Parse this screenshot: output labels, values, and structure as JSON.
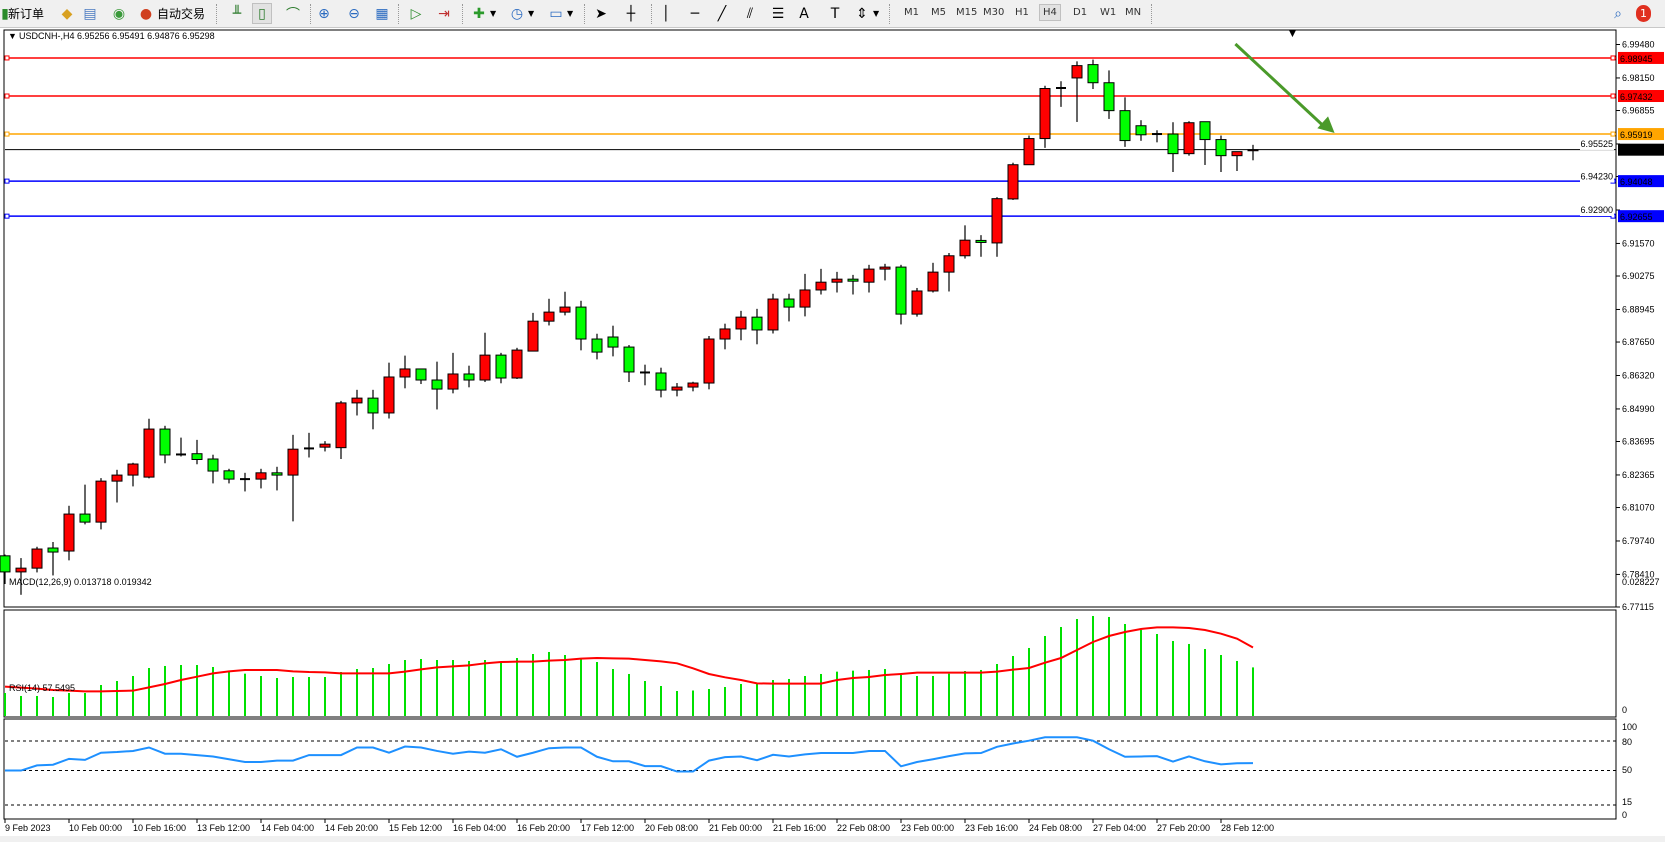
{
  "toolbar": {
    "new_order": "新订单",
    "auto_trading": "自动交易",
    "timeframes": [
      "M1",
      "M5",
      "M15",
      "M30",
      "H1",
      "H4",
      "D1",
      "W1",
      "MN"
    ],
    "active_timeframe": "H4",
    "notification_count": "1"
  },
  "chart": {
    "header": "USDCNH-,H4  6.95256 6.95491 6.94876 6.95298",
    "bull_color": "#ff0000",
    "bear_color": "#00ff00"
  },
  "macd": {
    "header": "MACD(12,26,9) 0.013718 0.019342",
    "max_label": "0.028227",
    "zero_label": "0"
  },
  "rsi": {
    "header": "RSI(14) 57.5495",
    "levels": [
      "100",
      "80",
      "50",
      "15",
      "0"
    ]
  },
  "chart_data": {
    "type": "candlestick",
    "symbol": "USDCNH-",
    "timeframe": "H4",
    "ylim": [
      6.77115,
      6.9948
    ],
    "y_ticks": [
      "6.99480",
      "6.98150",
      "6.96855",
      "6.95525",
      "6.94230",
      "6.92900",
      "6.91570",
      "6.90275",
      "6.88945",
      "6.87650",
      "6.86320",
      "6.84990",
      "6.83695",
      "6.82365",
      "6.81070",
      "6.79740",
      "6.78410",
      "6.77115"
    ],
    "x_labels": [
      {
        "index": 0,
        "label": "9 Feb 2023"
      },
      {
        "index": 4,
        "label": "10 Feb 00:00"
      },
      {
        "index": 8,
        "label": "10 Feb 16:00"
      },
      {
        "index": 12,
        "label": "13 Feb 12:00"
      },
      {
        "index": 16,
        "label": "14 Feb 04:00"
      },
      {
        "index": 20,
        "label": "14 Feb 20:00"
      },
      {
        "index": 24,
        "label": "15 Feb 12:00"
      },
      {
        "index": 28,
        "label": "16 Feb 04:00"
      },
      {
        "index": 32,
        "label": "16 Feb 20:00"
      },
      {
        "index": 36,
        "label": "17 Feb 12:00"
      },
      {
        "index": 40,
        "label": "20 Feb 08:00"
      },
      {
        "index": 44,
        "label": "21 Feb 00:00"
      },
      {
        "index": 48,
        "label": "21 Feb 16:00"
      },
      {
        "index": 52,
        "label": "22 Feb 08:00"
      },
      {
        "index": 56,
        "label": "23 Feb 00:00"
      },
      {
        "index": 60,
        "label": "23 Feb 16:00"
      },
      {
        "index": 64,
        "label": "24 Feb 08:00"
      },
      {
        "index": 68,
        "label": "27 Feb 04:00"
      },
      {
        "index": 72,
        "label": "27 Feb 20:00"
      },
      {
        "index": 76,
        "label": "28 Feb 12:00"
      }
    ],
    "ohlc": [
      [
        6.7915,
        6.792,
        6.7803,
        6.7851
      ],
      [
        6.7851,
        6.7906,
        6.776,
        6.7866
      ],
      [
        6.7866,
        6.7951,
        6.7849,
        6.7942
      ],
      [
        6.7946,
        6.797,
        6.7837,
        6.793
      ],
      [
        6.7934,
        6.8114,
        6.7897,
        6.8081
      ],
      [
        6.8081,
        6.8198,
        6.804,
        6.8049
      ],
      [
        6.8049,
        6.8224,
        6.802,
        6.8212
      ],
      [
        6.8212,
        6.8257,
        6.8127,
        6.8236
      ],
      [
        6.8236,
        6.8285,
        6.8191,
        6.828
      ],
      [
        6.8228,
        6.846,
        6.8223,
        6.8419
      ],
      [
        6.8419,
        6.8432,
        6.8283,
        6.8316
      ],
      [
        6.8318,
        6.8385,
        6.831,
        6.8318
      ],
      [
        6.8321,
        6.8376,
        6.8279,
        6.8298
      ],
      [
        6.83,
        6.8317,
        6.8203,
        6.8252
      ],
      [
        6.8253,
        6.8261,
        6.8203,
        6.822
      ],
      [
        6.822,
        6.8245,
        6.8171,
        6.822
      ],
      [
        6.822,
        6.8261,
        6.8183,
        6.8245
      ],
      [
        6.8245,
        6.8269,
        6.8175,
        6.8236
      ],
      [
        6.8236,
        6.8396,
        6.8052,
        6.8339
      ],
      [
        6.8342,
        6.8404,
        6.8306,
        6.8342
      ],
      [
        6.8347,
        6.8371,
        6.833,
        6.8359
      ],
      [
        6.8345,
        6.8531,
        6.83,
        6.8523
      ],
      [
        6.8523,
        6.8575,
        6.8473,
        6.8542
      ],
      [
        6.8542,
        6.8575,
        6.8418,
        6.8483
      ],
      [
        6.8483,
        6.8683,
        6.8461,
        6.8626
      ],
      [
        6.8626,
        6.8711,
        6.8581,
        6.8658
      ],
      [
        6.8658,
        6.8658,
        6.8598,
        6.8614
      ],
      [
        6.8614,
        6.8687,
        6.8497,
        6.8578
      ],
      [
        6.8578,
        6.8722,
        6.8561,
        6.8638
      ],
      [
        6.8638,
        6.8671,
        6.8585,
        6.8614
      ],
      [
        6.8614,
        6.8802,
        6.8606,
        6.8713
      ],
      [
        6.8713,
        6.8722,
        6.8601,
        6.8622
      ],
      [
        6.8622,
        6.8742,
        6.8618,
        6.8733
      ],
      [
        6.8729,
        6.8881,
        6.8729,
        6.8848
      ],
      [
        6.8848,
        6.8937,
        6.8831,
        6.8884
      ],
      [
        6.8884,
        6.8965,
        6.8871,
        6.8904
      ],
      [
        6.8904,
        6.8929,
        6.8732,
        6.8777
      ],
      [
        6.8777,
        6.8798,
        6.8696,
        6.8725
      ],
      [
        6.8785,
        6.883,
        6.8708,
        6.8745
      ],
      [
        6.8745,
        6.8753,
        6.8606,
        6.8646
      ],
      [
        6.8644,
        6.8675,
        6.8593,
        6.8644
      ],
      [
        6.8642,
        6.8663,
        6.8545,
        6.8574
      ],
      [
        6.8574,
        6.8602,
        6.8549,
        6.8586
      ],
      [
        6.8586,
        6.8607,
        6.8569,
        6.8602
      ],
      [
        6.8602,
        6.8789,
        6.8577,
        6.8777
      ],
      [
        6.8777,
        6.8838,
        6.8736,
        6.8817
      ],
      [
        6.8817,
        6.8889,
        6.8772,
        6.8864
      ],
      [
        6.8864,
        6.8897,
        6.8756,
        6.8813
      ],
      [
        6.8813,
        6.8957,
        6.8799,
        6.8936
      ],
      [
        6.8936,
        6.8957,
        6.8847,
        6.8904
      ],
      [
        6.8904,
        6.9036,
        6.8867,
        6.8972
      ],
      [
        6.8972,
        6.9056,
        6.8954,
        6.9003
      ],
      [
        6.9003,
        6.9044,
        6.8962,
        6.9015
      ],
      [
        6.9015,
        6.9032,
        6.8954,
        6.9007
      ],
      [
        6.9003,
        6.9072,
        6.8962,
        6.9055
      ],
      [
        6.9055,
        6.9076,
        6.901,
        6.9063
      ],
      [
        6.9063,
        6.9072,
        6.8835,
        6.8876
      ],
      [
        6.8876,
        6.898,
        6.8866,
        6.8968
      ],
      [
        6.8968,
        6.908,
        6.8962,
        6.9043
      ],
      [
        6.9043,
        6.9119,
        6.8966,
        6.9108
      ],
      [
        6.9108,
        6.9229,
        6.9097,
        6.917
      ],
      [
        6.9169,
        6.919,
        6.9104,
        6.9161
      ],
      [
        6.9159,
        6.9341,
        6.9104,
        6.9335
      ],
      [
        6.9334,
        6.9478,
        6.933,
        6.947
      ],
      [
        6.947,
        6.9586,
        6.947,
        6.9574
      ],
      [
        6.9574,
        6.9784,
        6.9537,
        6.9773
      ],
      [
        6.9775,
        6.9802,
        6.97,
        6.9775
      ],
      [
        6.9815,
        6.9881,
        6.964,
        6.9864
      ],
      [
        6.9868,
        6.9888,
        6.9771,
        6.9796
      ],
      [
        6.9796,
        6.9845,
        6.9652,
        6.9685
      ],
      [
        6.9685,
        6.9738,
        6.9541,
        6.9566
      ],
      [
        6.9625,
        6.9647,
        6.9565,
        6.9589
      ],
      [
        6.9592,
        6.9607,
        6.9559,
        6.9592
      ],
      [
        6.9592,
        6.9639,
        6.9441,
        6.9514
      ],
      [
        6.9514,
        6.9643,
        6.9506,
        6.9637
      ],
      [
        6.9641,
        6.9641,
        6.9469,
        6.957
      ],
      [
        6.957,
        6.9586,
        6.9441,
        6.9506
      ],
      [
        6.9506,
        6.9522,
        6.9445,
        6.9522
      ],
      [
        6.95256,
        6.95491,
        6.94876,
        6.95298
      ]
    ],
    "hlines": [
      {
        "price": "6.98945",
        "color": "#ff0000"
      },
      {
        "price": "6.97432",
        "color": "#ff0000"
      },
      {
        "price": "6.95919",
        "color": "#ffa500"
      },
      {
        "price": "6.95298",
        "color": "#000000"
      },
      {
        "price": "6.94048",
        "color": "#0000ff"
      },
      {
        "price": "6.92655",
        "color": "#0000ff"
      }
    ],
    "arrow": {
      "from": {
        "index": 76.9,
        "price": 6.995
      },
      "to": {
        "index": 83.1,
        "price": 6.9596
      },
      "color": "#4a9a2a"
    },
    "macd_hist": [
      0.00649,
      0.00565,
      0.00565,
      0.00536,
      0.00649,
      0.00649,
      0.00875,
      0.00988,
      0.01129,
      0.01355,
      0.01412,
      0.0144,
      0.0144,
      0.01383,
      0.01242,
      0.01195,
      0.01129,
      0.01073,
      0.01101,
      0.01101,
      0.01101,
      0.01242,
      0.01327,
      0.01355,
      0.01468,
      0.01581,
      0.01609,
      0.01581,
      0.01581,
      0.01553,
      0.01581,
      0.01524,
      0.01637,
      0.0175,
      0.01807,
      0.01722,
      0.01609,
      0.01524,
      0.01327,
      0.01186,
      0.00988,
      0.00847,
      0.00706,
      0.0072,
      0.00762,
      0.00819,
      0.00903,
      0.00903,
      0.01016,
      0.01045,
      0.01129,
      0.01186,
      0.01252,
      0.0128,
      0.01299,
      0.01327,
      0.01157,
      0.01129,
      0.01129,
      0.01195,
      0.0127,
      0.01299,
      0.01468,
      0.01694,
      0.0192,
      0.02258,
      0.02512,
      0.02738,
      0.028227,
      0.02795,
      0.02597,
      0.02428,
      0.02315,
      0.02117,
      0.02033,
      0.01891,
      0.01722,
      0.01553,
      0.013718
    ],
    "macd_signal": [
      0.00828,
      0.008,
      0.00772,
      0.00734,
      0.00715,
      0.00696,
      0.00696,
      0.00706,
      0.00715,
      0.00809,
      0.00903,
      0.01016,
      0.0111,
      0.01204,
      0.01261,
      0.01299,
      0.01299,
      0.01299,
      0.01261,
      0.01242,
      0.01233,
      0.01204,
      0.01204,
      0.01204,
      0.01204,
      0.01252,
      0.01317,
      0.01374,
      0.01402,
      0.0143,
      0.01487,
      0.01524,
      0.01534,
      0.01534,
      0.01562,
      0.01581,
      0.01619,
      0.01637,
      0.01628,
      0.01619,
      0.01581,
      0.01543,
      0.01487,
      0.01346,
      0.01186,
      0.01092,
      0.01016,
      0.00922,
      0.00913,
      0.00913,
      0.00913,
      0.00913,
      0.01016,
      0.01073,
      0.01101,
      0.01157,
      0.01186,
      0.01223,
      0.01223,
      0.01223,
      0.01223,
      0.01223,
      0.01252,
      0.01308,
      0.01355,
      0.01506,
      0.01637,
      0.01863,
      0.02089,
      0.02258,
      0.02371,
      0.02456,
      0.02503,
      0.02503,
      0.02484,
      0.02428,
      0.02324,
      0.02183,
      0.019342
    ],
    "macd_range": [
      0,
      0.028227
    ],
    "rsi": [
      50.0,
      50.0,
      55.2,
      55.9,
      61.9,
      60.8,
      68.1,
      68.8,
      69.9,
      73.4,
      67.1,
      67.1,
      65.7,
      64.3,
      61.5,
      58.7,
      58.7,
      60.1,
      60.1,
      65.7,
      65.7,
      65.7,
      73.4,
      73.4,
      68.1,
      74.4,
      73.4,
      69.9,
      67.1,
      69.2,
      68.1,
      71.6,
      64.0,
      68.1,
      72.7,
      73.4,
      73.4,
      64.0,
      59.4,
      59.4,
      54.5,
      54.5,
      49.0,
      49.0,
      60.1,
      63.6,
      64.3,
      60.5,
      66.0,
      64.3,
      66.4,
      67.8,
      67.8,
      67.8,
      69.9,
      69.9,
      54.3,
      58.7,
      61.5,
      64.6,
      67.4,
      67.8,
      74.1,
      77.5,
      80.3,
      83.8,
      83.8,
      83.8,
      80.3,
      71.6,
      64.0,
      64.3,
      64.6,
      59.1,
      64.3,
      59.4,
      56.3,
      57.4,
      57.5495
    ],
    "rsi_levels": [
      80,
      50,
      15
    ],
    "rsi_range": [
      0,
      100
    ]
  }
}
